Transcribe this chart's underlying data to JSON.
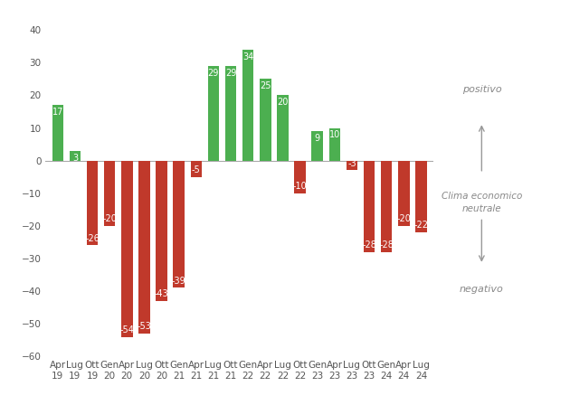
{
  "categories": [
    "Apr\n19",
    "Lug\n19",
    "Ott\n19",
    "Gen\n20",
    "Apr\n20",
    "Lug\n20",
    "Ott\n20",
    "Gen\n21",
    "Apr\n21",
    "Lug\n21",
    "Ott\n21",
    "Gen\n22",
    "Apr\n22",
    "Lug\n22",
    "Ott\n22",
    "Gen\n23",
    "Apr\n23",
    "Lug\n23",
    "Ott\n23",
    "Gen\n24",
    "Apr\n24",
    "Lug\n24"
  ],
  "values": [
    17,
    3,
    -26,
    -20,
    -54,
    -53,
    -43,
    -39,
    -5,
    29,
    29,
    34,
    25,
    20,
    -10,
    9,
    10,
    -3,
    -28,
    -28,
    -20,
    -22
  ],
  "green_color": "#4CAF50",
  "red_color": "#C0392B",
  "background_color": "#FFFFFF",
  "ylim": [
    -60,
    43
  ],
  "yticks": [
    -60,
    -50,
    -40,
    -30,
    -20,
    -10,
    0,
    10,
    20,
    30,
    40
  ],
  "tick_fontsize": 7.5,
  "annotation_fontsize": 7,
  "legend_positivo": "positivo",
  "legend_neutrale": "Clima economico\nneutrale",
  "legend_negativo": "negativo",
  "legend_text_color": "#888888",
  "arrow_color": "#999999"
}
